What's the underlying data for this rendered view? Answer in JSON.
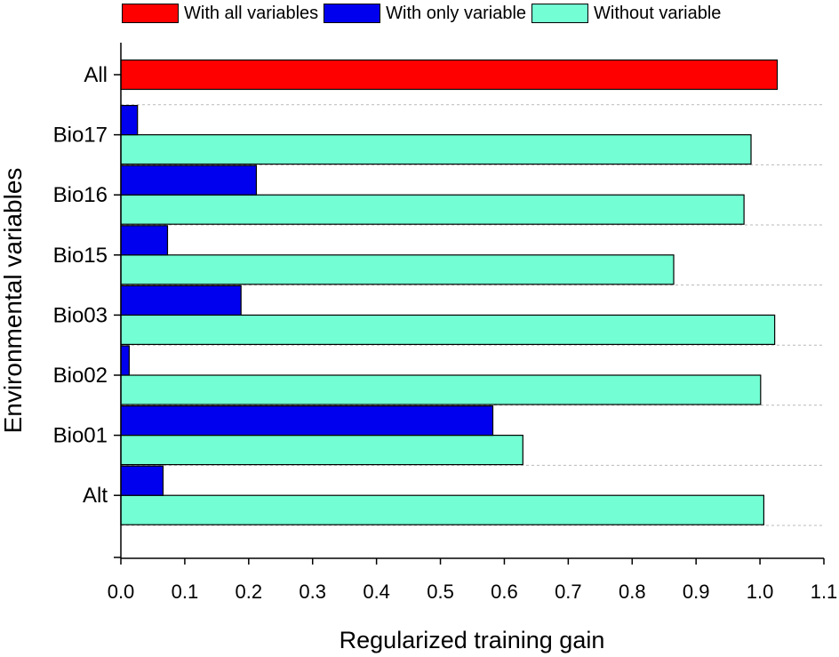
{
  "chart_data": {
    "type": "bar",
    "orientation": "horizontal",
    "title": "",
    "xlabel": "Regularized training gain",
    "ylabel": "Environmental variables",
    "xlim": [
      0,
      1.1
    ],
    "xticks": [
      "0.0",
      "0.1",
      "0.2",
      "0.3",
      "0.4",
      "0.5",
      "0.6",
      "0.7",
      "0.8",
      "0.9",
      "1.0",
      "1.1"
    ],
    "categories": [
      "All",
      "Bio17",
      "Bio16",
      "Bio15",
      "Bio03",
      "Bio02",
      "Bio01",
      "Alt"
    ],
    "series": [
      {
        "name": "With all variables",
        "color": "#ff0000",
        "values": [
          1.027,
          null,
          null,
          null,
          null,
          null,
          null,
          null
        ]
      },
      {
        "name": "With only variable",
        "color": "#0000ee",
        "values": [
          null,
          0.026,
          0.212,
          0.073,
          0.188,
          0.013,
          0.582,
          0.066
        ]
      },
      {
        "name": "Without variable",
        "color": "#73ffd3",
        "values": [
          null,
          0.986,
          0.975,
          0.865,
          1.023,
          1.001,
          0.629,
          1.006
        ]
      }
    ],
    "legend_position": "top",
    "grid": "dashed horizontal separators between categories"
  }
}
